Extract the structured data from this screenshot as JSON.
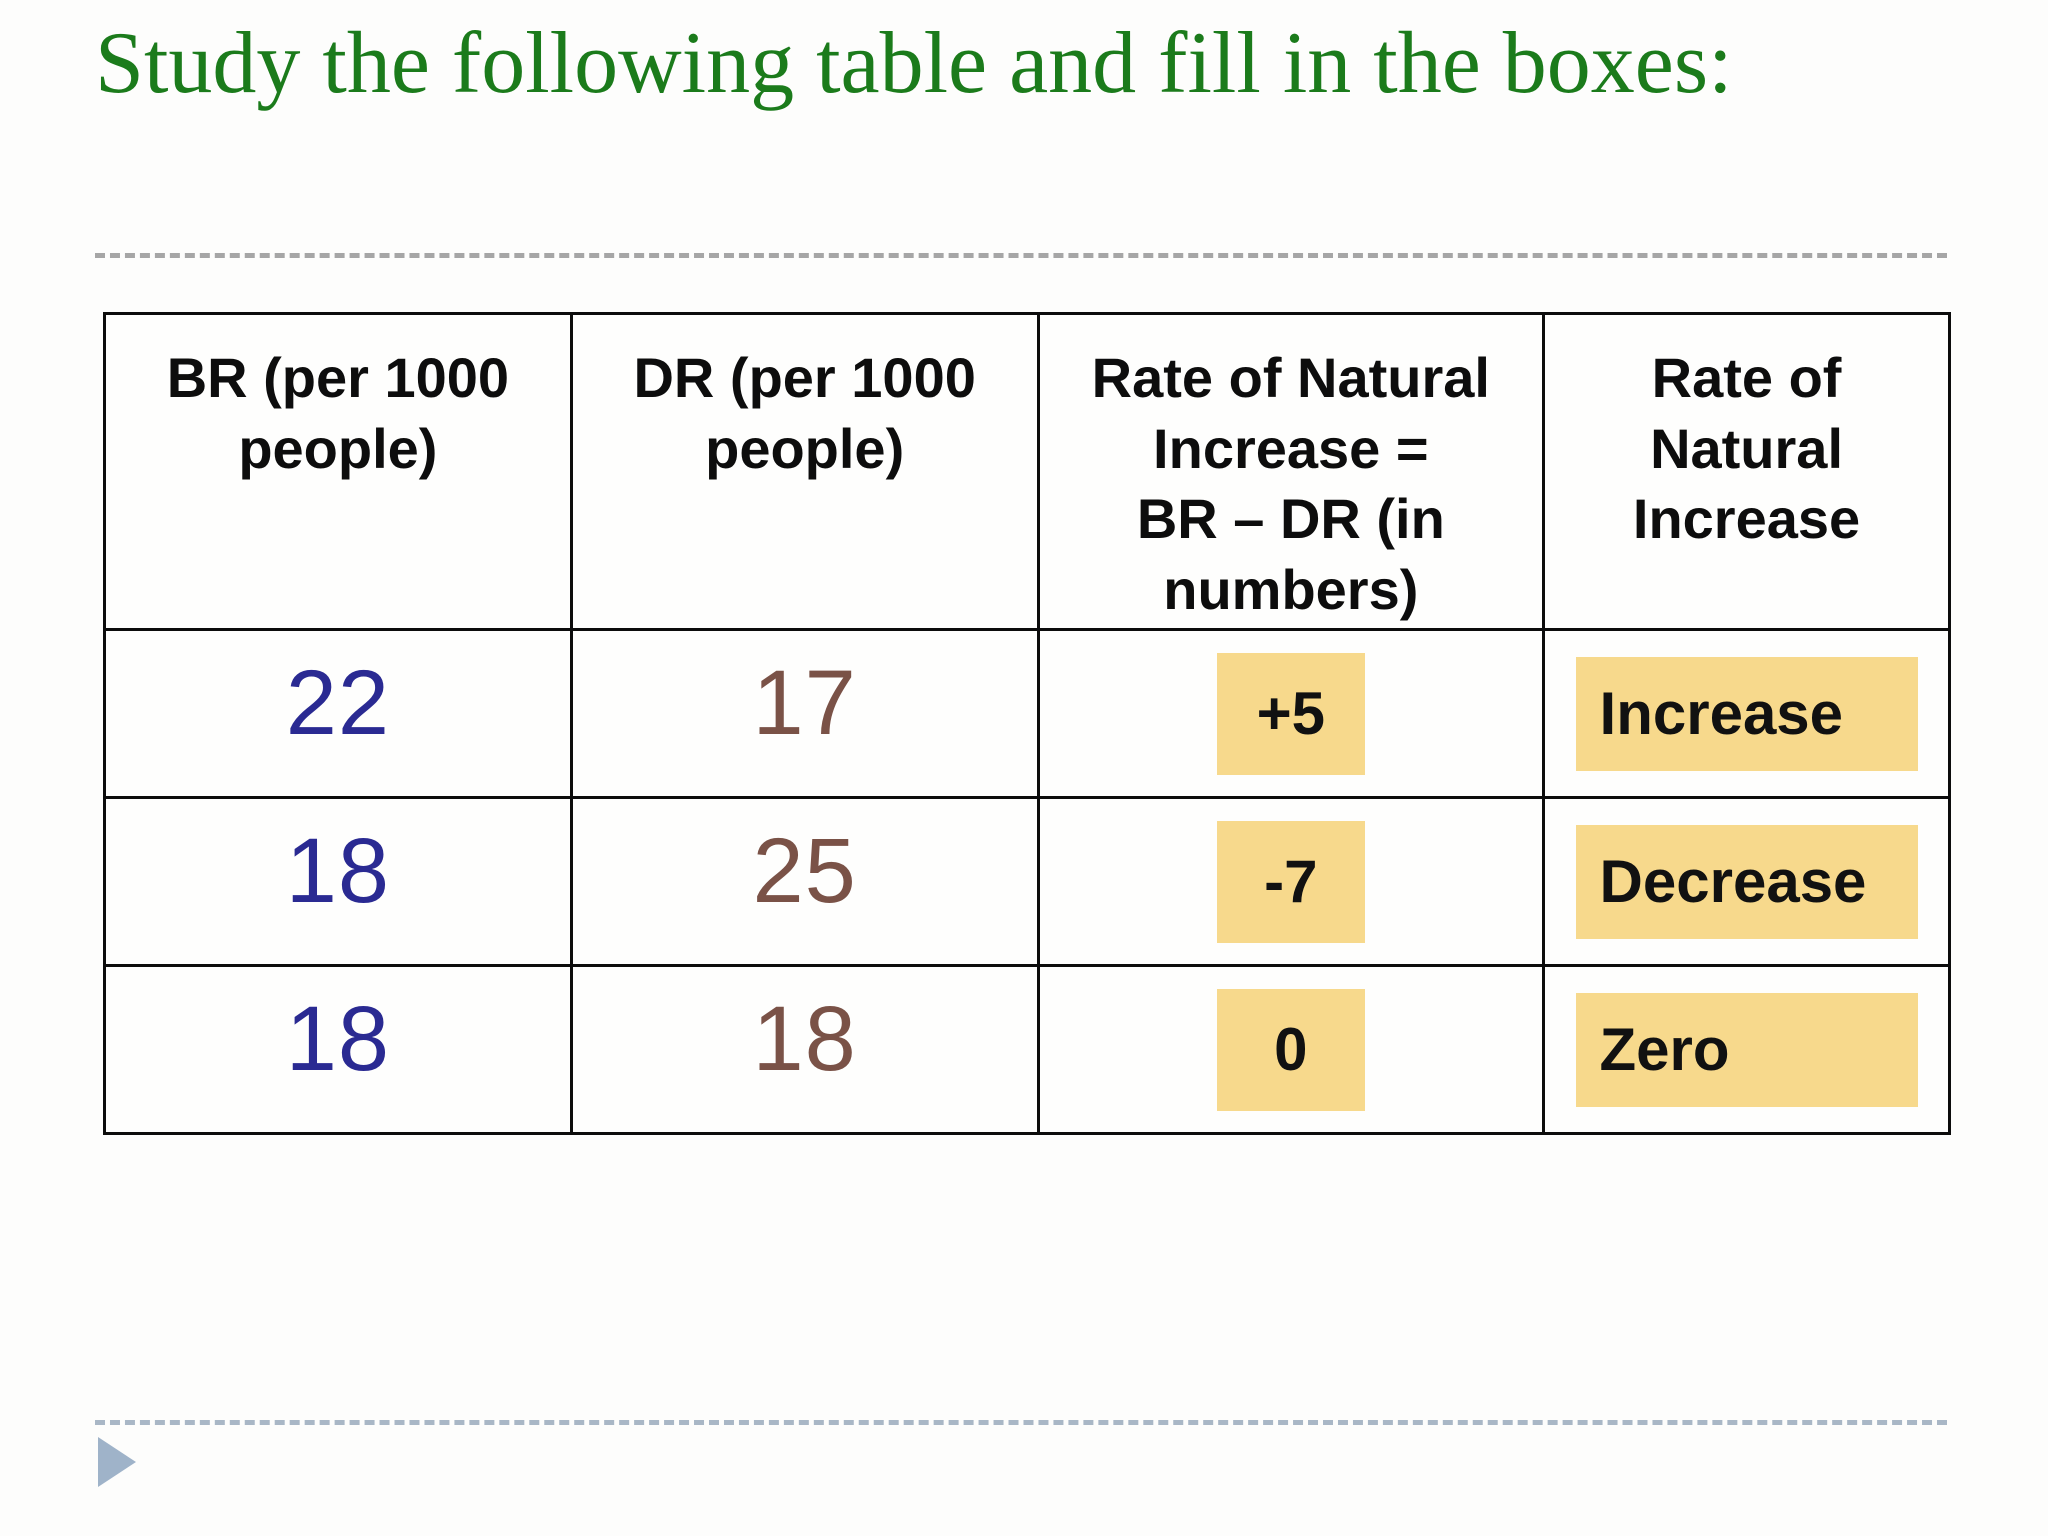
{
  "title": {
    "text": "Study the following table and fill in the boxes:"
  },
  "table": {
    "headers": [
      {
        "id": "br",
        "label": "BR (per 1000 people)"
      },
      {
        "id": "dr",
        "label": "DR (per 1000 people)"
      },
      {
        "id": "rni_calc",
        "label": "Rate of Natural Increase =\nBR – DR (in numbers)"
      },
      {
        "id": "rni",
        "label": "Rate of Natural Increase"
      }
    ],
    "rows": [
      {
        "br": "22",
        "dr": "17",
        "rni_value": "+5",
        "rni_direction": "Increase"
      },
      {
        "br": "18",
        "dr": "25",
        "rni_value": "-7",
        "rni_direction": "Decrease"
      },
      {
        "br": "18",
        "dr": "18",
        "rni_value": "0",
        "rni_direction": "Zero"
      }
    ]
  },
  "colors": {
    "title_green": "#1b7b1b",
    "br_blue": "#2a2a92",
    "dr_brown": "#7a5247",
    "header_black": "#0d0d0d",
    "highlight_yellow": "#f7d98c",
    "table_border_black": "#0c0c0c",
    "rule_top_gray": "#a6a6a6",
    "rule_bottom_blue_gray": "#a9b7c6",
    "arrow_blue_gray": "#9fb3c9"
  },
  "footer": {
    "arrow_icon": "right-triangle"
  }
}
